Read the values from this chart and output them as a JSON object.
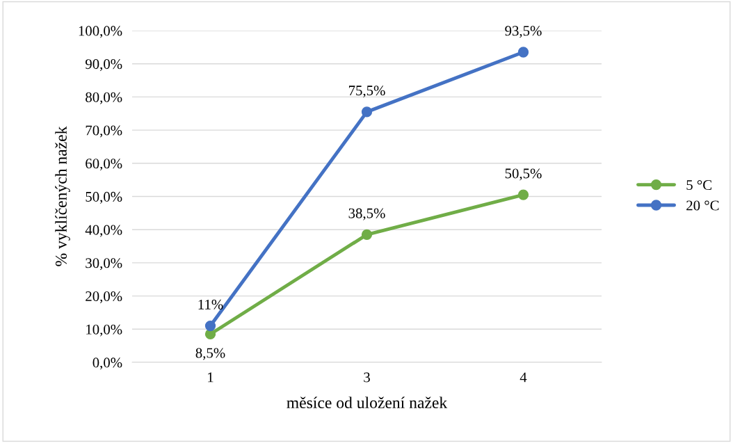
{
  "chart_data": {
    "type": "line",
    "xlabel": "měsíce od uložení nažek",
    "ylabel": "% vyklíčených nažek",
    "categories": [
      "1",
      "3",
      "4"
    ],
    "series": [
      {
        "name": "5 °C",
        "color": "#70ad47",
        "values": [
          8.5,
          38.5,
          50.5
        ],
        "value_labels": [
          "8,5%",
          "38,5%",
          "50,5%"
        ]
      },
      {
        "name": "20 °C",
        "color": "#4472c4",
        "values": [
          11,
          75.5,
          93.5
        ],
        "value_labels": [
          "11%",
          "75,5%",
          "93,5%"
        ]
      }
    ],
    "ylim": [
      0,
      100
    ],
    "yticks": [
      {
        "value": 0,
        "label": "0,0%"
      },
      {
        "value": 10,
        "label": "10,0%"
      },
      {
        "value": 20,
        "label": "20,0%"
      },
      {
        "value": 30,
        "label": "30,0%"
      },
      {
        "value": 40,
        "label": "40,0%"
      },
      {
        "value": 50,
        "label": "50,0%"
      },
      {
        "value": 60,
        "label": "60,0%"
      },
      {
        "value": 70,
        "label": "70,0%"
      },
      {
        "value": 80,
        "label": "80,0%"
      },
      {
        "value": 90,
        "label": "90,0%"
      },
      {
        "value": 100,
        "label": "100,0%"
      }
    ],
    "grid": "y",
    "legend": "right",
    "marker": "circle",
    "line_style": "solid"
  }
}
